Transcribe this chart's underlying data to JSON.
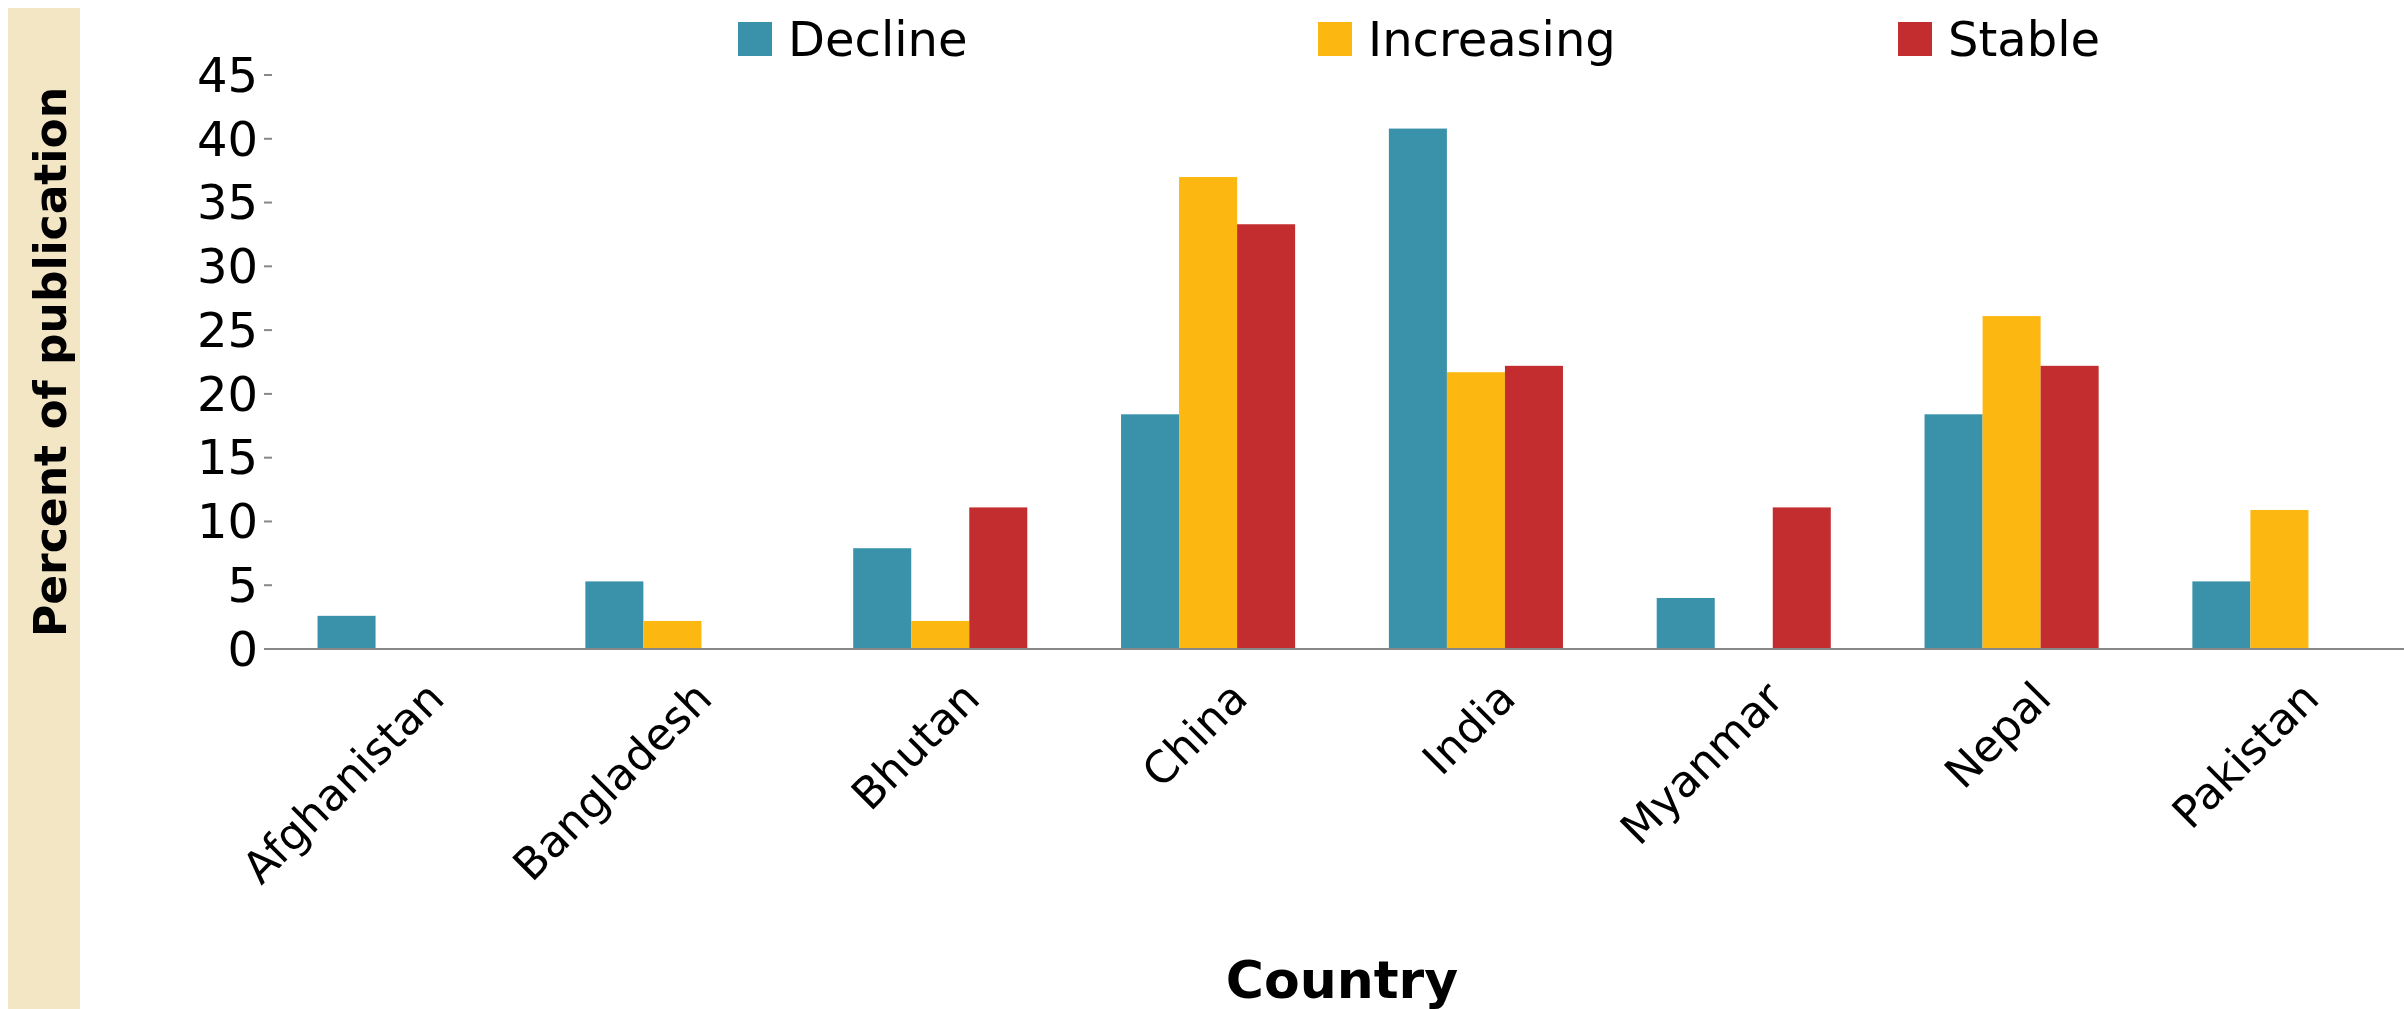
{
  "chart_data": {
    "type": "bar",
    "xlabel": "Country",
    "ylabel": "Percent of publication",
    "categories": [
      "Afghanistan",
      "Bangladesh",
      "Bhutan",
      "China",
      "India",
      "Myanmar",
      "Nepal",
      "Pakistan"
    ],
    "series": [
      {
        "name": "Decline",
        "color": "#3a91aa",
        "values": [
          2.6,
          5.3,
          7.9,
          18.4,
          40.8,
          4,
          18.4,
          5.3
        ]
      },
      {
        "name": "Increasing",
        "color": "#fcb711",
        "values": [
          null,
          2.2,
          2.2,
          37,
          21.7,
          null,
          26.1,
          10.9
        ]
      },
      {
        "name": "Stable",
        "color": "#c42d2f",
        "values": [
          null,
          null,
          11.1,
          33.3,
          22.2,
          11.1,
          22.2,
          null
        ]
      }
    ],
    "ylim": [
      0,
      45
    ],
    "yticks": [
      0,
      5,
      10,
      15,
      20,
      25,
      30,
      35,
      40,
      45
    ],
    "grid": false,
    "legend": "top"
  }
}
